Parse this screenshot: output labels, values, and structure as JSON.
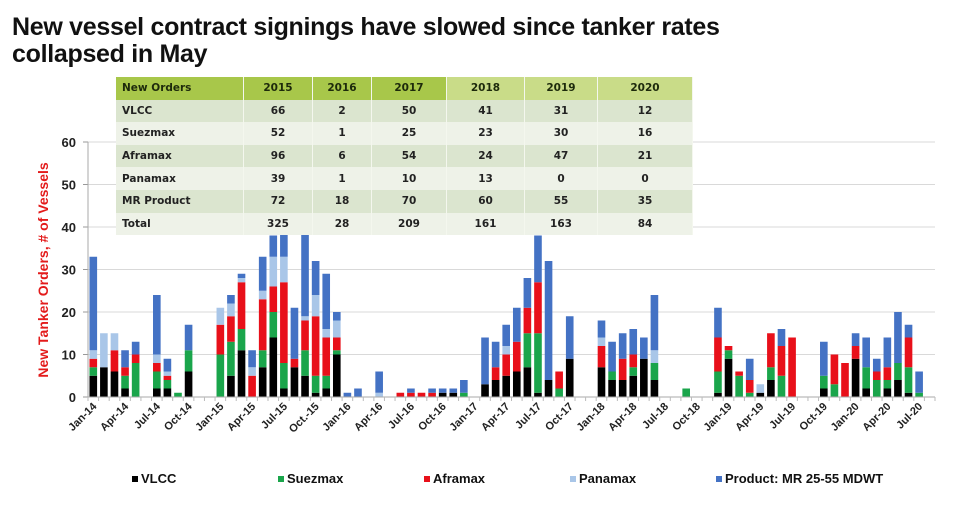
{
  "title": "New vessel contract signings have slowed since tanker rates collapsed in May",
  "title_line1": "New vessel contract signings have slowed since tanker rates",
  "title_line2": "collapsed in May",
  "table": {
    "headers": [
      "New Orders",
      "2015",
      "2016",
      "2017",
      "2018",
      "2019",
      "2020"
    ],
    "rows": [
      {
        "name": "VLCC",
        "values": [
          "66",
          "2",
          "50",
          "41",
          "31",
          "12"
        ]
      },
      {
        "name": "Suezmax",
        "values": [
          "52",
          "1",
          "25",
          "23",
          "30",
          "16"
        ]
      },
      {
        "name": "Aframax",
        "values": [
          "96",
          "6",
          "54",
          "24",
          "47",
          "21"
        ]
      },
      {
        "name": "Panamax",
        "values": [
          "39",
          "1",
          "10",
          "13",
          "0",
          "0"
        ]
      },
      {
        "name": "MR Product",
        "values": [
          "72",
          "18",
          "70",
          "60",
          "55",
          "35"
        ]
      },
      {
        "name": "Total",
        "values": [
          "325",
          "28",
          "209",
          "161",
          "163",
          "84"
        ]
      }
    ]
  },
  "chart_data": {
    "type": "bar",
    "stacked": true,
    "title": "New vessel contract signings have slowed since tanker rates collapsed in May",
    "xlabel": "",
    "ylabel": "New Tanker Orders, # of Vessels",
    "ylim": [
      0,
      60
    ],
    "yticks": [
      0,
      10,
      20,
      30,
      40,
      50,
      60
    ],
    "grid": true,
    "legend_position": "bottom",
    "xtick_labels": [
      "Jan-14",
      "Apr-14",
      "Jul-14",
      "Oct-14",
      "Jan-15",
      "Apr-15",
      "Jul-15",
      "Oct.-15",
      "Jan-16",
      "Apr-16",
      "Jul-16",
      "Oct-16",
      "Jan-17",
      "Apr-17",
      "Jul-17",
      "Oct-17",
      "Jan-18",
      "Apr-18",
      "Jul-18",
      "Oct-18",
      "Jan-19",
      "Apr-19",
      "Jul-19",
      "Oct-19",
      "Jan-20",
      "Apr-20",
      "Jul-20"
    ],
    "categories": [
      "Jan-14",
      "Feb-14",
      "Mar-14",
      "Apr-14",
      "May-14",
      "Jun-14",
      "Jul-14",
      "Aug-14",
      "Sep-14",
      "Oct-14",
      "Nov-14",
      "Dec-14",
      "Jan-15",
      "Feb-15",
      "Mar-15",
      "Apr-15",
      "May-15",
      "Jun-15",
      "Jul-15",
      "Aug-15",
      "Sep-15",
      "Oct-15",
      "Nov-15",
      "Dec-15",
      "Jan-16",
      "Feb-16",
      "Mar-16",
      "Apr-16",
      "May-16",
      "Jun-16",
      "Jul-16",
      "Aug-16",
      "Sep-16",
      "Oct-16",
      "Nov-16",
      "Dec-16",
      "Jan-17",
      "Feb-17",
      "Mar-17",
      "Apr-17",
      "May-17",
      "Jun-17",
      "Jul-17",
      "Aug-17",
      "Sep-17",
      "Oct-17",
      "Nov-17",
      "Dec-17",
      "Jan-18",
      "Feb-18",
      "Mar-18",
      "Apr-18",
      "May-18",
      "Jun-18",
      "Jul-18",
      "Aug-18",
      "Sep-18",
      "Oct-18",
      "Nov-18",
      "Dec-18",
      "Jan-19",
      "Feb-19",
      "Mar-19",
      "Apr-19",
      "May-19",
      "Jun-19",
      "Jul-19",
      "Aug-19",
      "Sep-19",
      "Oct-19",
      "Nov-19",
      "Dec-19",
      "Jan-20",
      "Feb-20",
      "Mar-20",
      "Apr-20",
      "May-20",
      "Jun-20",
      "Jul-20",
      "Aug-20"
    ],
    "series": [
      {
        "name": "VLCC",
        "color": "#000000",
        "values": [
          5,
          7,
          6,
          2,
          0,
          0,
          2,
          2,
          0,
          6,
          0,
          0,
          0,
          5,
          11,
          0,
          7,
          14,
          2,
          7,
          5,
          1,
          2,
          10,
          0,
          0,
          0,
          0,
          0,
          0,
          0,
          0,
          0,
          1,
          1,
          0,
          0,
          3,
          4,
          5,
          6,
          7,
          1,
          4,
          0,
          9,
          0,
          0,
          7,
          4,
          4,
          5,
          9,
          4,
          0,
          0,
          0,
          0,
          0,
          1,
          9,
          0,
          0,
          1,
          4,
          0,
          0,
          0,
          0,
          2,
          0,
          0,
          9,
          2,
          0,
          2,
          4,
          1,
          0,
          0
        ]
      },
      {
        "name": "Suezmax",
        "color": "#1aa54b",
        "values": [
          2,
          0,
          0,
          3,
          8,
          0,
          4,
          2,
          1,
          5,
          0,
          0,
          10,
          8,
          5,
          0,
          4,
          6,
          6,
          0,
          6,
          4,
          3,
          1,
          0,
          0,
          0,
          0,
          0,
          0,
          0,
          0,
          0,
          0,
          0,
          1,
          0,
          0,
          0,
          0,
          0,
          8,
          14,
          0,
          2,
          0,
          0,
          0,
          0,
          2,
          0,
          2,
          0,
          4,
          0,
          0,
          2,
          0,
          0,
          5,
          2,
          5,
          1,
          0,
          3,
          5,
          0,
          0,
          0,
          3,
          3,
          0,
          0,
          5,
          4,
          2,
          4,
          6,
          1,
          0
        ]
      },
      {
        "name": "Aframax",
        "color": "#e8101a",
        "values": [
          2,
          0,
          5,
          2,
          2,
          0,
          2,
          1,
          0,
          0,
          0,
          0,
          7,
          6,
          11,
          5,
          12,
          6,
          19,
          2,
          7,
          14,
          9,
          3,
          0,
          0,
          0,
          0,
          0,
          1,
          1,
          1,
          1,
          0,
          0,
          0,
          0,
          0,
          3,
          5,
          7,
          6,
          12,
          0,
          4,
          0,
          0,
          0,
          5,
          0,
          5,
          3,
          0,
          0,
          0,
          0,
          0,
          0,
          0,
          8,
          1,
          1,
          3,
          0,
          8,
          7,
          14,
          0,
          0,
          0,
          7,
          8,
          3,
          0,
          2,
          3,
          0,
          7,
          0,
          0
        ]
      },
      {
        "name": "Panamax",
        "color": "#a9c6e8",
        "values": [
          2,
          8,
          4,
          0,
          0,
          0,
          2,
          1,
          0,
          0,
          0,
          0,
          4,
          3,
          1,
          2,
          2,
          7,
          6,
          0,
          1,
          5,
          2,
          4,
          0,
          0,
          0,
          1,
          0,
          0,
          0,
          0,
          0,
          0,
          0,
          0,
          0,
          0,
          0,
          2,
          0,
          0,
          0,
          0,
          0,
          0,
          0,
          0,
          2,
          0,
          0,
          0,
          0,
          3,
          0,
          0,
          0,
          0,
          0,
          0,
          0,
          0,
          0,
          2,
          0,
          0,
          0,
          0,
          0,
          0,
          0,
          0,
          0,
          0,
          0,
          0,
          0,
          0,
          0,
          0
        ]
      },
      {
        "name": "Product: MR 25-55 MDWT",
        "color": "#4472c4",
        "values": [
          22,
          0,
          0,
          4,
          3,
          0,
          14,
          3,
          0,
          6,
          0,
          0,
          0,
          2,
          1,
          4,
          8,
          5,
          6,
          12,
          20,
          8,
          13,
          2,
          1,
          2,
          0,
          5,
          0,
          0,
          1,
          0,
          1,
          1,
          1,
          3,
          0,
          11,
          6,
          5,
          8,
          7,
          11,
          28,
          0,
          10,
          0,
          0,
          4,
          7,
          6,
          6,
          5,
          13,
          0,
          0,
          0,
          0,
          0,
          7,
          0,
          0,
          5,
          0,
          0,
          4,
          0,
          0,
          0,
          8,
          0,
          0,
          3,
          7,
          3,
          7,
          12,
          3,
          5,
          0
        ]
      }
    ],
    "totals_note": "values estimated from gridlines"
  },
  "legend": [
    {
      "label": "VLCC",
      "color": "#000000"
    },
    {
      "label": "Suezmax",
      "color": "#1aa54b"
    },
    {
      "label": "Aframax",
      "color": "#e8101a"
    },
    {
      "label": "Panamax",
      "color": "#a9c6e8"
    },
    {
      "label": "Product: MR 25-55 MDWT",
      "color": "#4472c4"
    }
  ]
}
